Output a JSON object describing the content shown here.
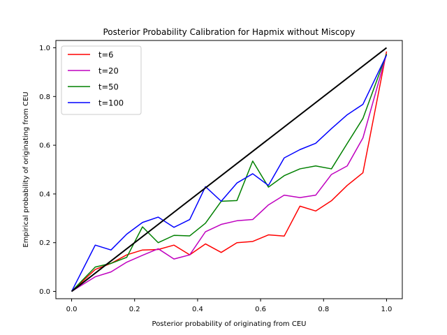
{
  "chart_data": {
    "type": "line",
    "title": "Posterior Probability Calibration for Hapmix without Miscopy",
    "xlabel": "Posterior probability of originating from CEU",
    "ylabel": "Empirical probability of originating from CEU",
    "xlim": [
      -0.05,
      1.05
    ],
    "ylim": [
      -0.03,
      1.03
    ],
    "xticks": [
      "0.0",
      "0.2",
      "0.4",
      "0.6",
      "0.8",
      "1.0"
    ],
    "yticks": [
      "0.0",
      "0.2",
      "0.4",
      "0.6",
      "0.8",
      "1.0"
    ],
    "grid": false,
    "legend_position": "top-left",
    "x": [
      0.0,
      0.075,
      0.125,
      0.175,
      0.225,
      0.275,
      0.325,
      0.375,
      0.425,
      0.475,
      0.525,
      0.575,
      0.625,
      0.675,
      0.725,
      0.775,
      0.825,
      0.875,
      0.925,
      1.0
    ],
    "series": [
      {
        "name": "t=6",
        "color": "#ff0000",
        "values": [
          0.0,
          0.09,
          0.115,
          0.15,
          0.17,
          0.172,
          0.19,
          0.15,
          0.195,
          0.16,
          0.2,
          0.205,
          0.232,
          0.227,
          0.35,
          0.33,
          0.372,
          0.435,
          0.487,
          0.985
        ]
      },
      {
        "name": "t=20",
        "color": "#bf00bf",
        "values": [
          0.0,
          0.06,
          0.08,
          0.12,
          0.148,
          0.175,
          0.133,
          0.15,
          0.245,
          0.275,
          0.29,
          0.295,
          0.355,
          0.395,
          0.385,
          0.395,
          0.48,
          0.515,
          0.63,
          0.975
        ]
      },
      {
        "name": "t=50",
        "color": "#008000",
        "values": [
          0.0,
          0.1,
          0.115,
          0.14,
          0.265,
          0.2,
          0.23,
          0.228,
          0.28,
          0.37,
          0.373,
          0.535,
          0.428,
          0.475,
          0.503,
          0.515,
          0.503,
          0.607,
          0.71,
          0.975
        ]
      },
      {
        "name": "t=100",
        "color": "#0000ff",
        "values": [
          0.0,
          0.19,
          0.17,
          0.235,
          0.283,
          0.305,
          0.263,
          0.295,
          0.43,
          0.37,
          0.445,
          0.483,
          0.435,
          0.548,
          0.582,
          0.608,
          0.668,
          0.725,
          0.768,
          0.97
        ]
      }
    ],
    "reference_line": {
      "color": "#000000",
      "x": [
        0.0,
        1.0
      ],
      "y": [
        0.0,
        1.0
      ]
    }
  }
}
